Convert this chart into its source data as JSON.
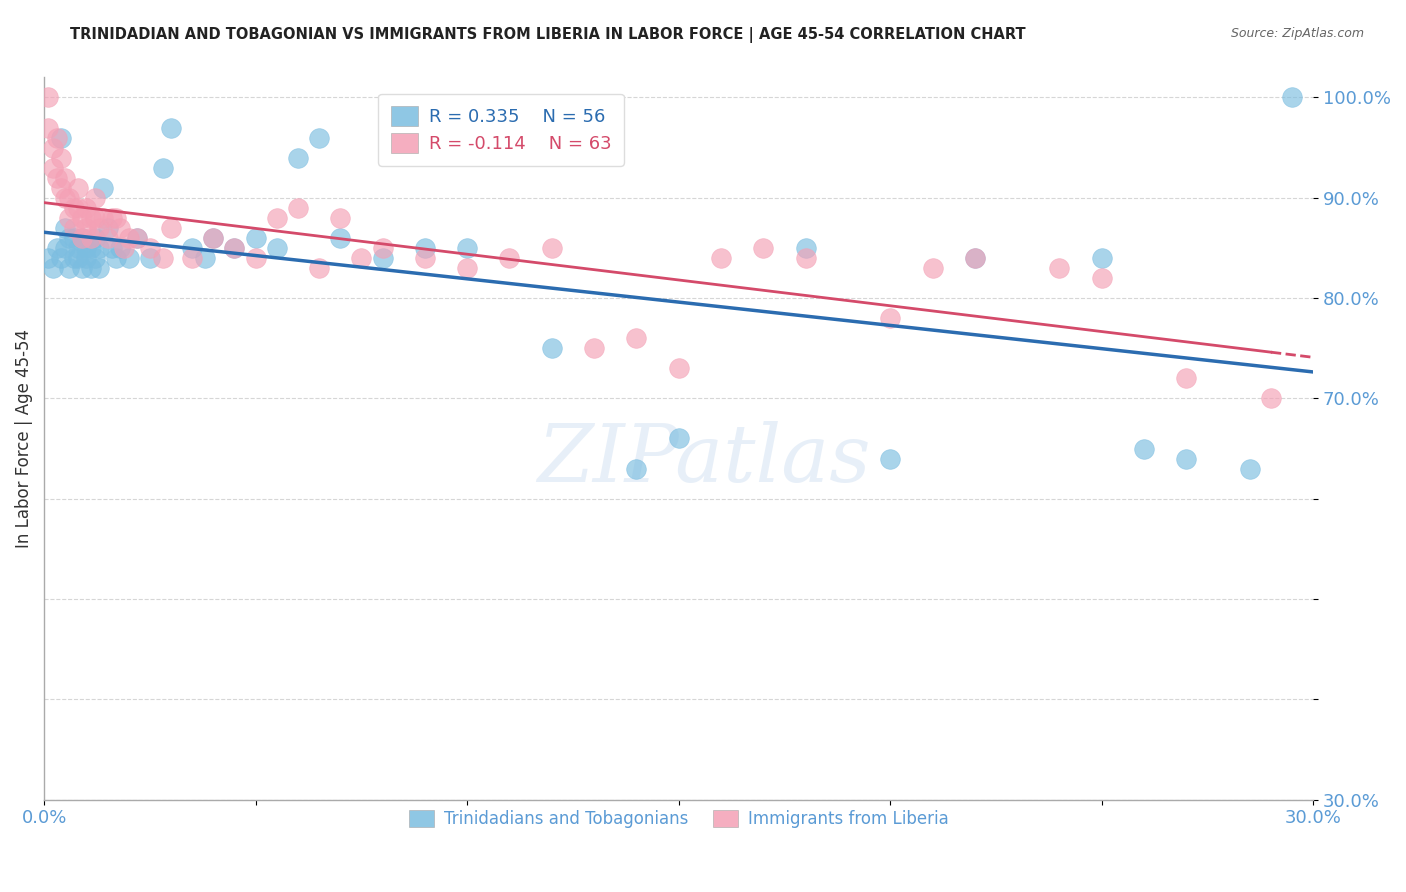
{
  "title": "TRINIDADIAN AND TOBAGONIAN VS IMMIGRANTS FROM LIBERIA IN LABOR FORCE | AGE 45-54 CORRELATION CHART",
  "source": "Source: ZipAtlas.com",
  "ylabel": "In Labor Force | Age 45-54",
  "xmin": 0.0,
  "xmax": 0.3,
  "ymin": 0.3,
  "ymax": 1.02,
  "xticks": [
    0.0,
    0.05,
    0.1,
    0.15,
    0.2,
    0.25,
    0.3
  ],
  "xticklabels": [
    "0.0%",
    "",
    "",
    "",
    "",
    "",
    "30.0%"
  ],
  "yticks": [
    0.3,
    0.4,
    0.5,
    0.6,
    0.7,
    0.8,
    0.9,
    1.0
  ],
  "yticklabels": [
    "30.0%",
    "",
    "",
    "",
    "70.0%",
    "80.0%",
    "90.0%",
    "100.0%"
  ],
  "legend_r1": "R = 0.335",
  "legend_n1": "N = 56",
  "legend_r2": "R = -0.114",
  "legend_n2": "N = 63",
  "blue_color": "#7bbde0",
  "pink_color": "#f4a0b5",
  "trend_blue": "#2b6cb0",
  "trend_pink": "#d44a6a",
  "axis_color": "#5b9bd5",
  "watermark": "ZIPatlas",
  "blue_scatter_x": [
    0.001,
    0.002,
    0.003,
    0.004,
    0.004,
    0.005,
    0.005,
    0.006,
    0.006,
    0.007,
    0.007,
    0.008,
    0.008,
    0.009,
    0.009,
    0.01,
    0.01,
    0.011,
    0.011,
    0.012,
    0.012,
    0.013,
    0.013,
    0.014,
    0.015,
    0.016,
    0.017,
    0.018,
    0.02,
    0.022,
    0.025,
    0.028,
    0.03,
    0.035,
    0.038,
    0.04,
    0.045,
    0.05,
    0.055,
    0.06,
    0.065,
    0.07,
    0.08,
    0.09,
    0.1,
    0.12,
    0.14,
    0.15,
    0.18,
    0.2,
    0.22,
    0.25,
    0.26,
    0.27,
    0.285,
    0.295
  ],
  "blue_scatter_y": [
    0.84,
    0.83,
    0.85,
    0.84,
    0.96,
    0.85,
    0.87,
    0.83,
    0.86,
    0.84,
    0.86,
    0.85,
    0.84,
    0.86,
    0.83,
    0.85,
    0.84,
    0.83,
    0.85,
    0.84,
    0.86,
    0.83,
    0.85,
    0.91,
    0.87,
    0.85,
    0.84,
    0.85,
    0.84,
    0.86,
    0.84,
    0.93,
    0.97,
    0.85,
    0.84,
    0.86,
    0.85,
    0.86,
    0.85,
    0.94,
    0.96,
    0.86,
    0.84,
    0.85,
    0.85,
    0.75,
    0.63,
    0.66,
    0.85,
    0.64,
    0.84,
    0.84,
    0.65,
    0.64,
    0.63,
    1.0
  ],
  "pink_scatter_x": [
    0.001,
    0.001,
    0.002,
    0.002,
    0.003,
    0.003,
    0.004,
    0.004,
    0.005,
    0.005,
    0.006,
    0.006,
    0.007,
    0.007,
    0.008,
    0.008,
    0.009,
    0.009,
    0.01,
    0.01,
    0.011,
    0.011,
    0.012,
    0.012,
    0.013,
    0.014,
    0.015,
    0.016,
    0.017,
    0.018,
    0.019,
    0.02,
    0.022,
    0.025,
    0.028,
    0.03,
    0.035,
    0.04,
    0.045,
    0.05,
    0.055,
    0.06,
    0.065,
    0.07,
    0.075,
    0.08,
    0.09,
    0.1,
    0.11,
    0.12,
    0.13,
    0.14,
    0.15,
    0.16,
    0.17,
    0.18,
    0.2,
    0.21,
    0.22,
    0.24,
    0.25,
    0.27,
    0.29
  ],
  "pink_scatter_y": [
    1.0,
    0.97,
    0.93,
    0.95,
    0.96,
    0.92,
    0.91,
    0.94,
    0.9,
    0.92,
    0.9,
    0.88,
    0.89,
    0.87,
    0.89,
    0.91,
    0.88,
    0.86,
    0.87,
    0.89,
    0.88,
    0.86,
    0.88,
    0.9,
    0.87,
    0.88,
    0.86,
    0.88,
    0.88,
    0.87,
    0.85,
    0.86,
    0.86,
    0.85,
    0.84,
    0.87,
    0.84,
    0.86,
    0.85,
    0.84,
    0.88,
    0.89,
    0.83,
    0.88,
    0.84,
    0.85,
    0.84,
    0.83,
    0.84,
    0.85,
    0.75,
    0.76,
    0.73,
    0.84,
    0.85,
    0.84,
    0.78,
    0.83,
    0.84,
    0.83,
    0.82,
    0.72,
    0.7
  ]
}
